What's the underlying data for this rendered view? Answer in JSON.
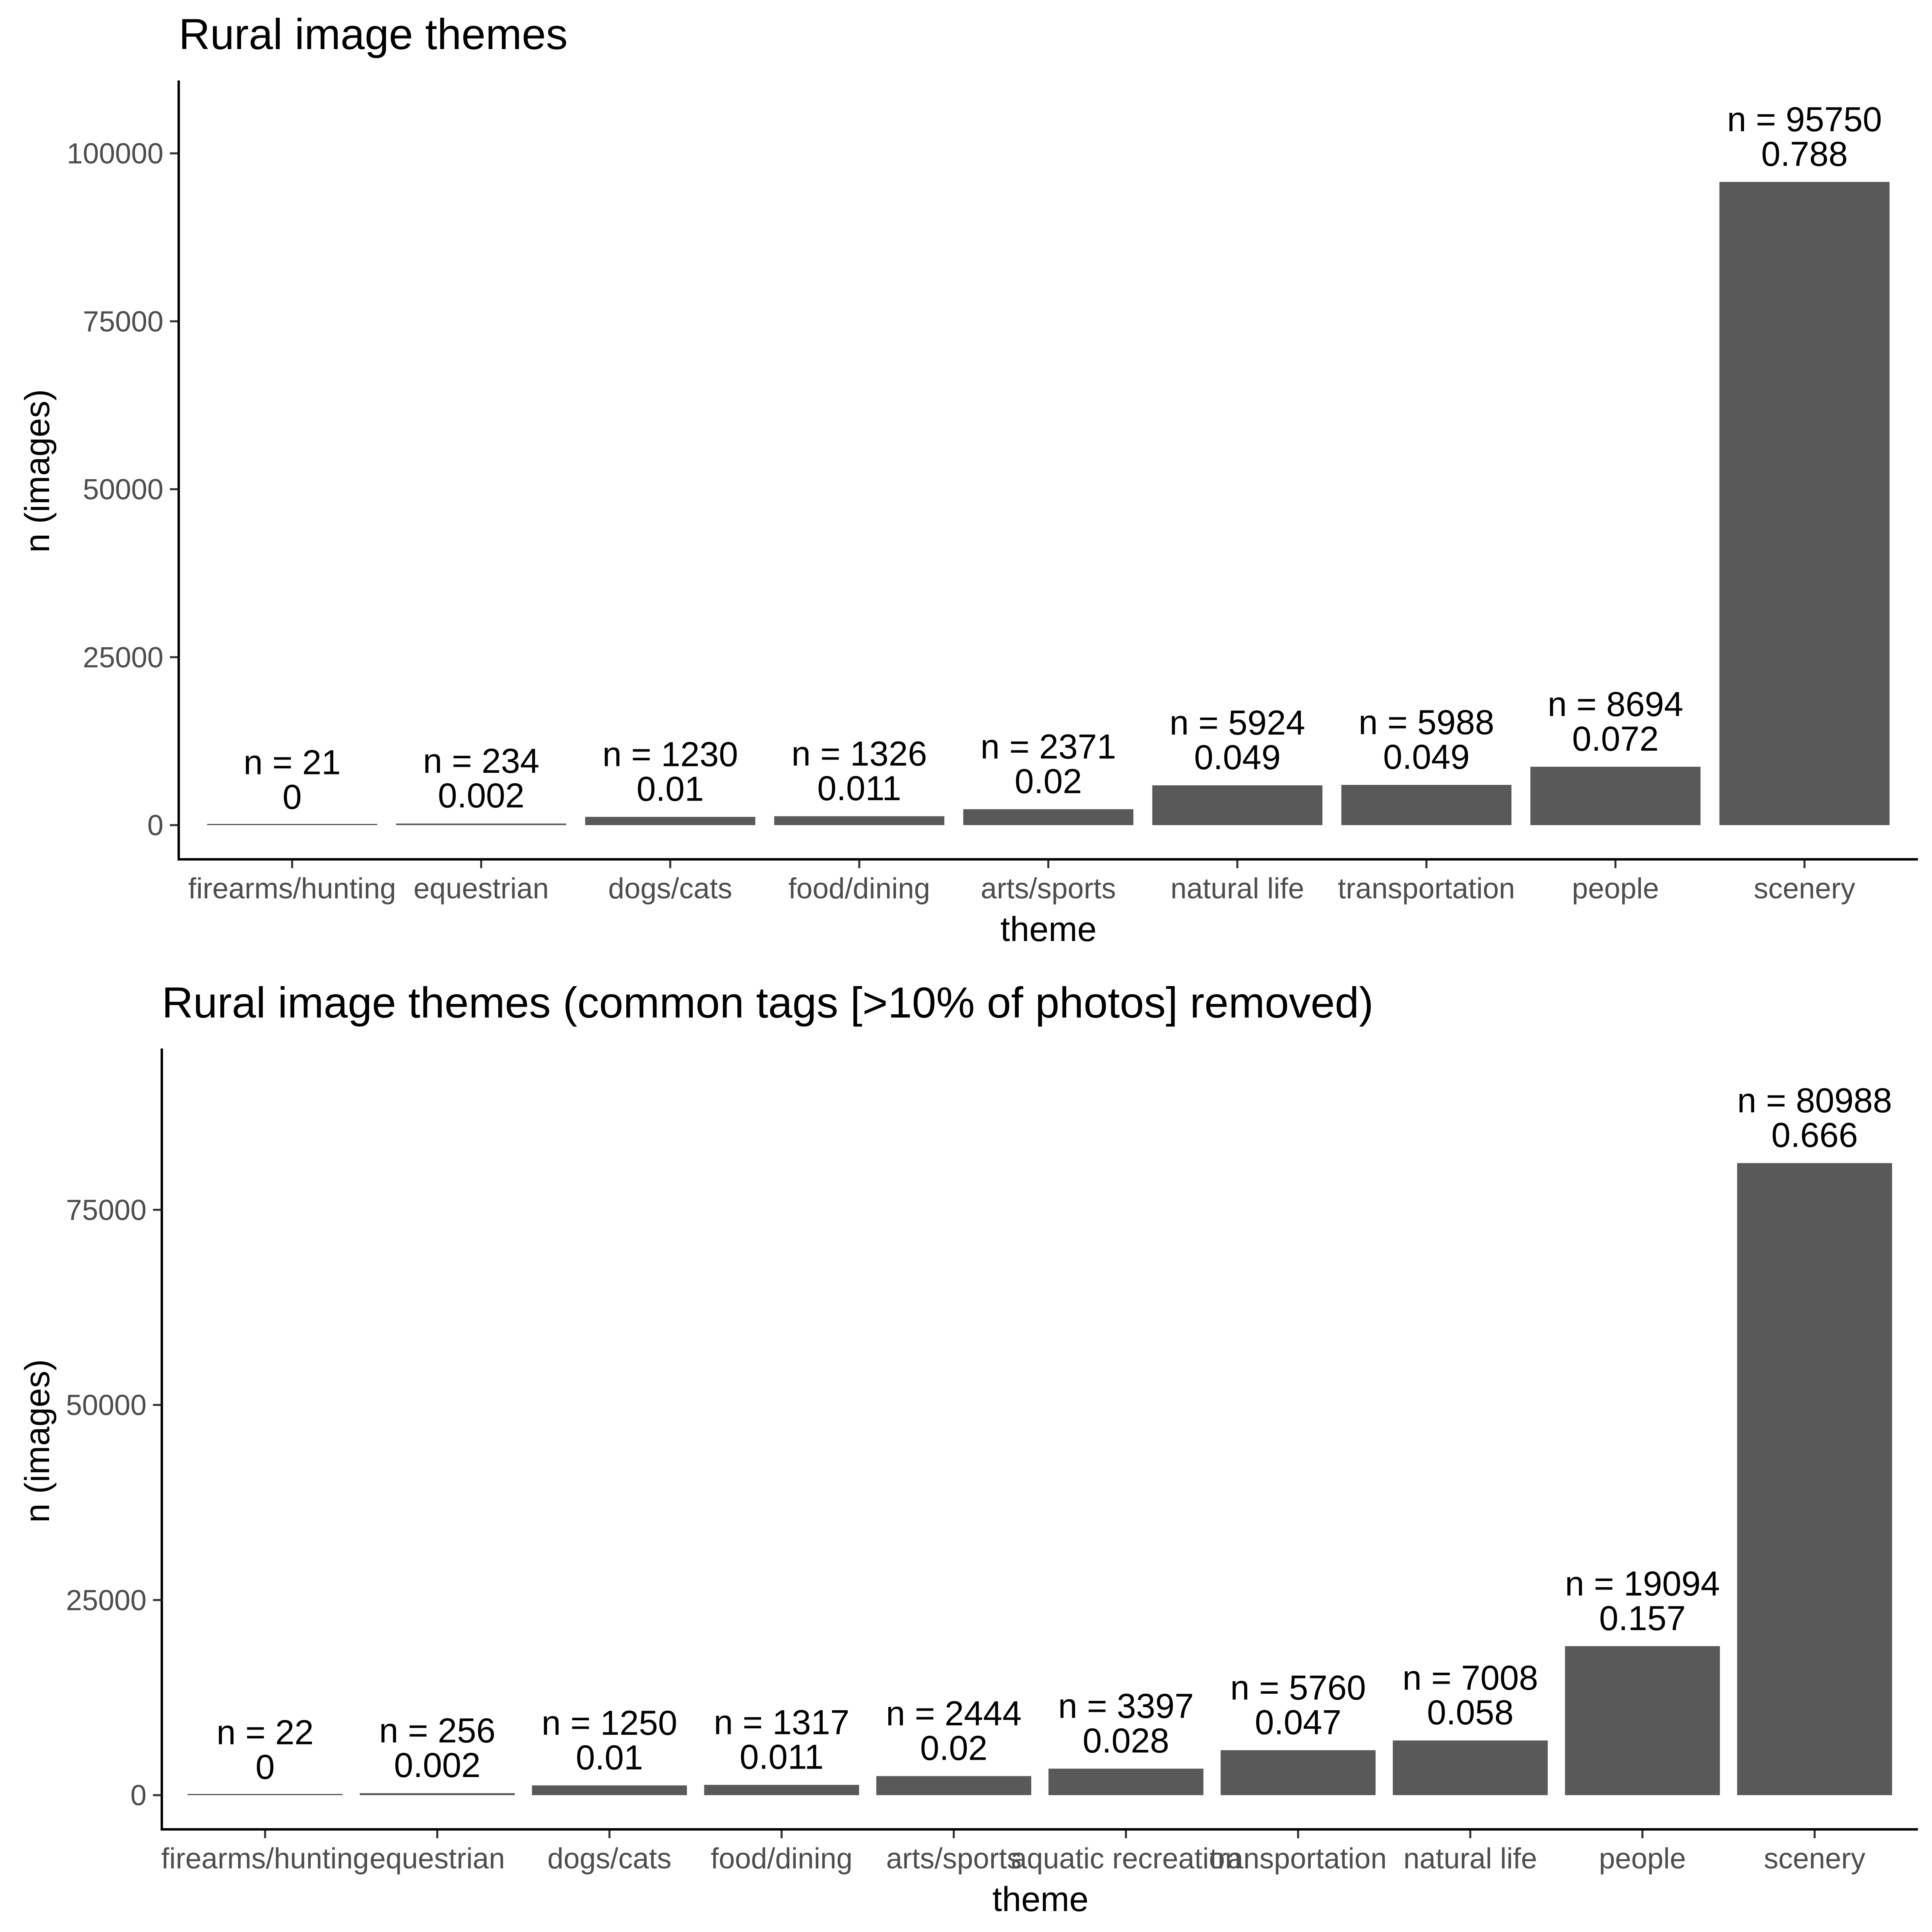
{
  "colors": {
    "bar": "#595959",
    "background": "#ffffff",
    "axis": "#000000",
    "tick_text": "#4d4d4d"
  },
  "chart_data": [
    {
      "type": "bar",
      "title": "Rural image themes",
      "xlabel": "theme",
      "ylabel": "n (images)",
      "ylim": [
        0,
        110000
      ],
      "yticks": [
        0,
        25000,
        50000,
        75000,
        100000
      ],
      "ytick_labels": [
        "0",
        "25000",
        "50000",
        "75000",
        "100000"
      ],
      "grid": false,
      "categories": [
        "firearms/hunting",
        "equestrian",
        "dogs/cats",
        "food/dining",
        "arts/sports",
        "natural life",
        "transportation",
        "people",
        "scenery"
      ],
      "values": [
        21,
        234,
        1230,
        1326,
        2371,
        5924,
        5988,
        8694,
        95750
      ],
      "count_labels": [
        "n =  21",
        "n =  234",
        "n =  1230",
        "n =  1326",
        "n =  2371",
        "n =  5924",
        "n =  5988",
        "n =  8694",
        "n =  95750"
      ],
      "proportion_labels": [
        "0",
        "0.002",
        "0.01",
        "0.011",
        "0.02",
        "0.049",
        "0.049",
        "0.072",
        "0.788"
      ]
    },
    {
      "type": "bar",
      "title": "Rural image themes (common tags [>10% of photos] removed)",
      "xlabel": "theme",
      "ylabel": "n (images)",
      "ylim": [
        0,
        95000
      ],
      "yticks": [
        0,
        25000,
        50000,
        75000
      ],
      "ytick_labels": [
        "0",
        "25000",
        "50000",
        "75000"
      ],
      "grid": false,
      "categories": [
        "firearms/hunting",
        "equestrian",
        "dogs/cats",
        "food/dining",
        "arts/sports",
        "aquatic recreation",
        "transportation",
        "natural life",
        "people",
        "scenery"
      ],
      "values": [
        22,
        256,
        1250,
        1317,
        2444,
        3397,
        5760,
        7008,
        19094,
        80988
      ],
      "count_labels": [
        "n =  22",
        "n =  256",
        "n =  1250",
        "n =  1317",
        "n =  2444",
        "n =  3397",
        "n =  5760",
        "n =  7008",
        "n =  19094",
        "n =  80988"
      ],
      "proportion_labels": [
        "0",
        "0.002",
        "0.01",
        "0.011",
        "0.02",
        "0.028",
        "0.047",
        "0.058",
        "0.157",
        "0.666"
      ]
    }
  ]
}
